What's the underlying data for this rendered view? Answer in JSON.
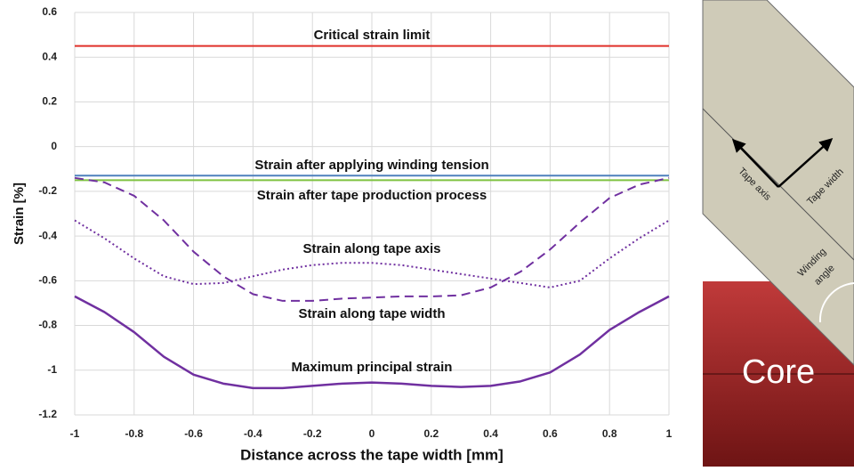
{
  "chart_data": {
    "type": "line",
    "ylabel": "Strain [%]",
    "xlabel": "Distance across the tape width [mm]",
    "xlim": [
      -1,
      1
    ],
    "xticks": [
      -1,
      -0.8,
      -0.6,
      -0.4,
      -0.2,
      0,
      0.2,
      0.4,
      0.6,
      0.8,
      1
    ],
    "ylim": [
      -1.2,
      0.6
    ],
    "yticks": [
      0.6,
      0.4,
      0.2,
      0,
      -0.2,
      -0.4,
      -0.6,
      -0.8,
      -1,
      -1.2
    ],
    "grid": true,
    "series": [
      {
        "name": "Critical strain limit",
        "color": "#e0302a",
        "style": "solid",
        "x": [
          -1,
          1
        ],
        "values": [
          0.45,
          0.45
        ]
      },
      {
        "name": "Strain after applying winding tension",
        "color": "#4f81bd",
        "style": "solid",
        "x": [
          -1,
          1
        ],
        "values": [
          -0.13,
          -0.13
        ]
      },
      {
        "name": "Strain after tape production process",
        "color": "#7fc241",
        "style": "solid",
        "x": [
          -1,
          1
        ],
        "values": [
          -0.15,
          -0.15
        ]
      },
      {
        "name": "Strain along tape axis",
        "color": "#7030a0",
        "style": "dotted",
        "x": [
          -1,
          -0.9,
          -0.8,
          -0.7,
          -0.6,
          -0.5,
          -0.4,
          -0.3,
          -0.2,
          -0.1,
          0,
          0.1,
          0.2,
          0.3,
          0.4,
          0.5,
          0.6,
          0.7,
          0.8,
          0.9,
          1
        ],
        "values": [
          -0.33,
          -0.41,
          -0.5,
          -0.58,
          -0.615,
          -0.61,
          -0.58,
          -0.55,
          -0.53,
          -0.52,
          -0.52,
          -0.53,
          -0.55,
          -0.57,
          -0.59,
          -0.61,
          -0.63,
          -0.6,
          -0.5,
          -0.41,
          -0.33
        ]
      },
      {
        "name": "Strain along tape width",
        "color": "#7030a0",
        "style": "dashed",
        "x": [
          -1,
          -0.9,
          -0.8,
          -0.7,
          -0.6,
          -0.5,
          -0.4,
          -0.3,
          -0.2,
          -0.1,
          0,
          0.1,
          0.2,
          0.3,
          0.4,
          0.5,
          0.6,
          0.7,
          0.8,
          0.9,
          1
        ],
        "values": [
          -0.14,
          -0.16,
          -0.22,
          -0.33,
          -0.47,
          -0.58,
          -0.66,
          -0.69,
          -0.69,
          -0.68,
          -0.675,
          -0.67,
          -0.67,
          -0.665,
          -0.63,
          -0.56,
          -0.46,
          -0.34,
          -0.23,
          -0.17,
          -0.14
        ]
      },
      {
        "name": "Maximum principal strain",
        "color": "#7030a0",
        "style": "solid",
        "x": [
          -1,
          -0.9,
          -0.8,
          -0.7,
          -0.6,
          -0.5,
          -0.4,
          -0.3,
          -0.2,
          -0.1,
          0,
          0.1,
          0.2,
          0.3,
          0.4,
          0.5,
          0.6,
          0.7,
          0.8,
          0.9,
          1
        ],
        "values": [
          -0.67,
          -0.74,
          -0.83,
          -0.94,
          -1.02,
          -1.06,
          -1.08,
          -1.08,
          -1.07,
          -1.06,
          -1.055,
          -1.06,
          -1.07,
          -1.075,
          -1.07,
          -1.05,
          -1.01,
          -0.93,
          -0.82,
          -0.74,
          -0.67
        ]
      }
    ]
  },
  "diagram": {
    "core": "Core",
    "tape_axis": "Tape axis",
    "tape_width": "Tape width",
    "winding_angle": [
      "Winding",
      "angle"
    ]
  }
}
